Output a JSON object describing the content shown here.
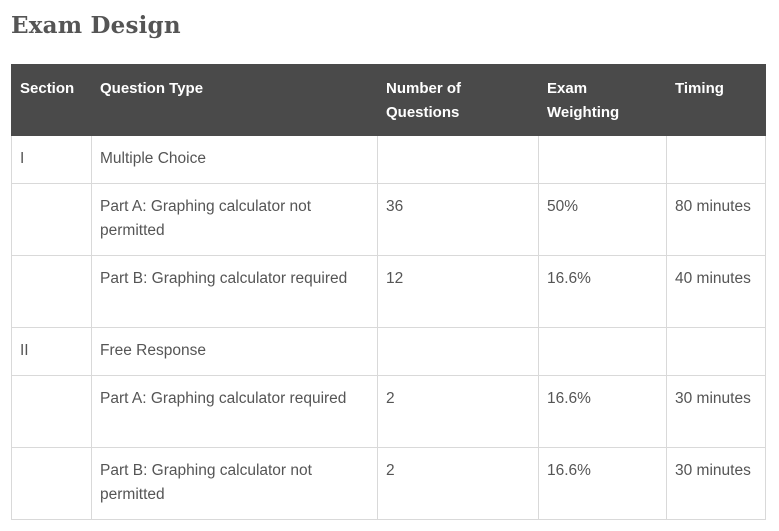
{
  "title": "Exam Design",
  "table": {
    "headers": [
      "Section",
      "Question Type",
      "Number of Questions",
      "Exam Weighting",
      "Timing"
    ],
    "rows": [
      {
        "kind": "section",
        "cells": [
          "I",
          "Multiple Choice",
          "",
          "",
          ""
        ]
      },
      {
        "kind": "part",
        "cells": [
          "",
          "Part A: Graphing calculator not permitted",
          "36",
          "50%",
          "80 minutes"
        ]
      },
      {
        "kind": "part",
        "cells": [
          "",
          "Part B: Graphing calculator required",
          "12",
          "16.6%",
          "40 minutes"
        ]
      },
      {
        "kind": "section",
        "cells": [
          "II",
          "Free Response",
          "",
          "",
          ""
        ]
      },
      {
        "kind": "part",
        "cells": [
          "",
          "Part A: Graphing calculator required",
          "2",
          "16.6%",
          "30 minutes"
        ]
      },
      {
        "kind": "part",
        "cells": [
          "",
          "Part B: Graphing calculator not permitted",
          "2",
          "16.6%",
          "30 minutes"
        ]
      }
    ]
  }
}
